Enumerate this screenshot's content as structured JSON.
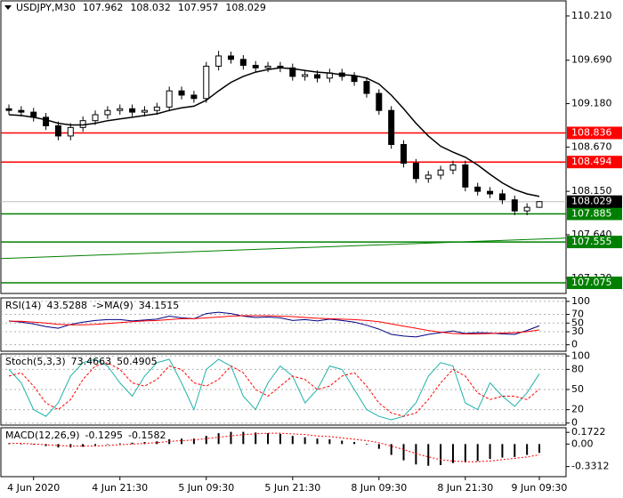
{
  "chart_data": [
    {
      "type": "candlestick",
      "title": "USDJPY,M30",
      "categories": [
        null,
        null,
        "4 Jun 2020",
        null,
        null,
        null,
        null,
        null,
        null,
        "4 Jun 21:30",
        null,
        null,
        null,
        null,
        null,
        null,
        "5 Jun 09:30",
        null,
        null,
        null,
        null,
        null,
        null,
        "5 Jun 21:30",
        null,
        null,
        null,
        null,
        null,
        null,
        "8 Jun 09:30",
        null,
        null,
        null,
        null,
        null,
        null,
        "8 Jun 21:30",
        null,
        null,
        null,
        null,
        null,
        "9 Jun 09:30"
      ],
      "open": [
        109.12,
        109.1,
        109.08,
        109.02,
        108.92,
        108.8,
        108.9,
        108.98,
        109.05,
        109.1,
        109.12,
        109.08,
        109.1,
        109.14,
        109.33,
        109.28,
        109.24,
        109.62,
        109.74,
        109.7,
        109.63,
        109.6,
        109.62,
        109.6,
        109.5,
        109.52,
        109.48,
        109.54,
        109.5,
        109.44,
        109.3,
        109.1,
        108.7,
        108.48,
        108.3,
        108.34,
        108.4,
        108.46,
        108.2,
        108.15,
        108.12,
        108.05,
        107.92,
        107.962
      ],
      "high": [
        109.17,
        109.15,
        109.13,
        109.07,
        108.97,
        108.95,
        109.03,
        109.1,
        109.15,
        109.17,
        109.17,
        109.15,
        109.19,
        109.38,
        109.38,
        109.33,
        109.67,
        109.8,
        109.79,
        109.75,
        109.68,
        109.67,
        109.67,
        109.65,
        109.57,
        109.57,
        109.59,
        109.59,
        109.55,
        109.49,
        109.35,
        109.15,
        108.75,
        108.53,
        108.39,
        108.45,
        108.51,
        108.51,
        108.25,
        108.2,
        108.17,
        108.1,
        108.01,
        108.032
      ],
      "low": [
        109.05,
        109.03,
        108.97,
        108.87,
        108.75,
        108.75,
        108.85,
        108.93,
        109.0,
        109.05,
        109.03,
        109.03,
        109.05,
        109.09,
        109.23,
        109.19,
        109.19,
        109.57,
        109.65,
        109.58,
        109.55,
        109.55,
        109.55,
        109.45,
        109.45,
        109.43,
        109.43,
        109.45,
        109.39,
        109.25,
        109.05,
        108.65,
        108.43,
        108.25,
        108.25,
        108.29,
        108.35,
        108.15,
        108.1,
        108.07,
        108.0,
        107.87,
        107.87,
        107.957
      ],
      "close": [
        109.1,
        109.08,
        109.02,
        108.92,
        108.8,
        108.9,
        108.98,
        109.05,
        109.1,
        109.12,
        109.08,
        109.1,
        109.14,
        109.33,
        109.28,
        109.24,
        109.62,
        109.74,
        109.7,
        109.63,
        109.6,
        109.62,
        109.6,
        109.5,
        109.52,
        109.48,
        109.54,
        109.5,
        109.44,
        109.3,
        109.1,
        108.7,
        108.48,
        108.3,
        108.34,
        108.4,
        108.46,
        108.2,
        108.15,
        108.12,
        108.05,
        107.92,
        107.962,
        108.029
      ],
      "colors": {
        "up": "#ffffff",
        "down": "#000000",
        "wick": "#000000"
      },
      "ma": {
        "color": "#000000",
        "values": [
          109.05,
          109.04,
          109.02,
          108.99,
          108.95,
          108.93,
          108.93,
          108.95,
          108.98,
          109.0,
          109.02,
          109.04,
          109.06,
          109.1,
          109.13,
          109.15,
          109.22,
          109.33,
          109.43,
          109.5,
          109.55,
          109.58,
          109.6,
          109.59,
          109.57,
          109.55,
          109.54,
          109.52,
          109.51,
          109.48,
          109.41,
          109.28,
          109.12,
          108.95,
          108.8,
          108.68,
          108.61,
          108.55,
          108.46,
          108.35,
          108.25,
          108.17,
          108.12,
          108.09
        ]
      },
      "levels": [
        {
          "value": 108.836,
          "color": "#ff0000"
        },
        {
          "value": 108.494,
          "color": "#ff0000"
        },
        {
          "value": 107.885,
          "color": "#008000"
        },
        {
          "value": 107.555,
          "color": "#008000"
        },
        {
          "value": 107.075,
          "color": "#008000"
        }
      ],
      "trend_line": {
        "color": "#008000",
        "values": [
          107.36,
          107.6
        ]
      },
      "ylim": [
        106.95,
        110.387
      ],
      "yticks": [
        {
          "value": 110.21,
          "label": "110.210"
        },
        {
          "value": 109.69,
          "label": "109.690"
        },
        {
          "value": 109.18,
          "label": "109.180"
        },
        {
          "value": 108.67,
          "label": "108.670"
        },
        {
          "value": 108.15,
          "label": "108.150"
        },
        {
          "value": 107.64,
          "label": "107.640"
        },
        {
          "value": 107.13,
          "label": "107.130"
        }
      ],
      "grid": false
    },
    {
      "type": "line",
      "title": "RSI(14)",
      "series": [
        {
          "color": "#000080",
          "values": [
            55,
            52,
            48,
            42,
            38,
            47,
            52,
            56,
            58,
            58,
            55,
            57,
            59,
            66,
            62,
            60,
            72,
            75,
            72,
            66,
            63,
            64,
            62,
            56,
            58,
            55,
            59,
            56,
            52,
            45,
            36,
            24,
            20,
            18,
            24,
            28,
            32,
            26,
            28,
            27,
            25,
            24,
            33,
            43.5288
          ]
        },
        {
          "name": "->MA(9)",
          "color": "#ff0000",
          "values": [
            54,
            54,
            52,
            50,
            47,
            46,
            46,
            47,
            49,
            51,
            53,
            55,
            56,
            58,
            60,
            60,
            62,
            64,
            66,
            67,
            67,
            67,
            66,
            65,
            63,
            61,
            60,
            59,
            58,
            56,
            53,
            48,
            43,
            38,
            33,
            29,
            26,
            25,
            25,
            26,
            27,
            28,
            30,
            34.1515
          ]
        }
      ],
      "ylim": [
        -15,
        108
      ],
      "yticks": [
        100,
        70,
        50,
        30,
        0
      ],
      "grid": true
    },
    {
      "type": "line",
      "title": "Stoch(5,3,3)",
      "series": [
        {
          "color": "#20b2aa",
          "values": [
            80,
            60,
            20,
            10,
            30,
            70,
            90,
            95,
            85,
            60,
            40,
            70,
            90,
            95,
            60,
            20,
            80,
            95,
            85,
            40,
            20,
            60,
            85,
            70,
            30,
            50,
            85,
            80,
            50,
            20,
            10,
            5,
            10,
            30,
            70,
            90,
            85,
            30,
            20,
            60,
            40,
            25,
            45,
            73.4663
          ]
        },
        {
          "color": "#ff0000",
          "dashed": true,
          "values": [
            70,
            75,
            55,
            30,
            20,
            35,
            65,
            85,
            90,
            80,
            60,
            55,
            65,
            85,
            80,
            60,
            55,
            65,
            85,
            75,
            50,
            40,
            55,
            70,
            65,
            50,
            55,
            70,
            75,
            55,
            30,
            15,
            10,
            15,
            35,
            60,
            80,
            70,
            45,
            35,
            40,
            40,
            35,
            50.4905
          ]
        }
      ],
      "ylim": [
        -3,
        103
      ],
      "yticks": [
        100,
        80,
        50,
        20,
        0
      ],
      "grid": true
    },
    {
      "type": "macd",
      "title": "MACD(12,26,9)",
      "series": [
        {
          "kind": "histogram",
          "color": "#000000",
          "values": [
            0.01,
            0,
            -0.01,
            -0.03,
            -0.05,
            -0.05,
            -0.04,
            -0.02,
            0,
            0.01,
            0.02,
            0.03,
            0.04,
            0.07,
            0.08,
            0.08,
            0.12,
            0.16,
            0.18,
            0.18,
            0.17,
            0.16,
            0.15,
            0.12,
            0.1,
            0.08,
            0.07,
            0.05,
            0.03,
            -0.01,
            -0.07,
            -0.16,
            -0.24,
            -0.3,
            -0.32,
            -0.31,
            -0.28,
            -0.27,
            -0.25,
            -0.22,
            -0.2,
            -0.19,
            -0.16,
            -0.1295
          ]
        },
        {
          "kind": "line",
          "color": "#ff0000",
          "dashed": true,
          "values": [
            0.01,
            0.01,
            0,
            -0.01,
            -0.02,
            -0.03,
            -0.03,
            -0.03,
            -0.02,
            -0.01,
            0,
            0.01,
            0.02,
            0.04,
            0.05,
            0.06,
            0.08,
            0.1,
            0.12,
            0.14,
            0.15,
            0.16,
            0.16,
            0.15,
            0.14,
            0.12,
            0.11,
            0.09,
            0.07,
            0.05,
            0.02,
            -0.03,
            -0.08,
            -0.14,
            -0.19,
            -0.23,
            -0.25,
            -0.26,
            -0.26,
            -0.25,
            -0.23,
            -0.21,
            -0.19,
            -0.1582
          ]
        }
      ],
      "ylim": [
        -0.48,
        0.24
      ],
      "yticks": [
        0.1722,
        {
          "value": 0,
          "label": "0.00"
        },
        -0.3312
      ],
      "grid": false
    }
  ]
}
